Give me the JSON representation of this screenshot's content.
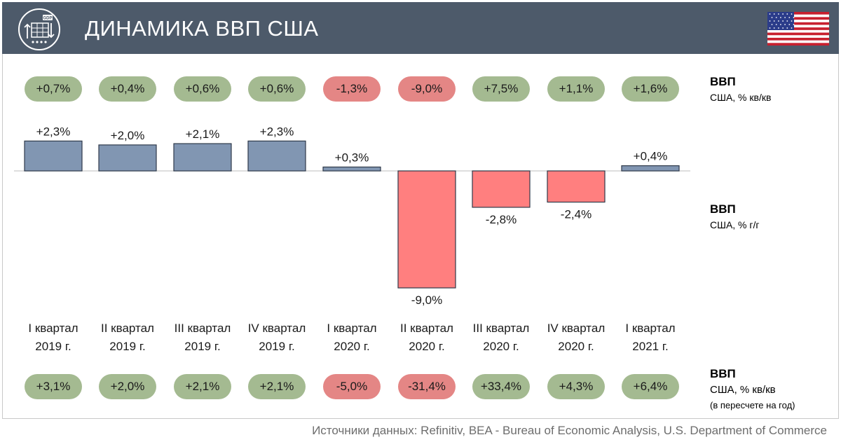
{
  "header": {
    "title": "ДИНАМИКА ВВП США",
    "logo_icon": "gdp-growth-icon",
    "logo_text": "GDP",
    "flag_icon": "usa-flag-icon",
    "bg_color": "#4d5a6a"
  },
  "top_row": {
    "title": "ВВП",
    "subtitle": "США, % кв/кв",
    "values": [
      {
        "label": "+0,7%",
        "tone": "positive"
      },
      {
        "label": "+0,4%",
        "tone": "positive"
      },
      {
        "label": "+0,6%",
        "tone": "positive"
      },
      {
        "label": "+0,6%",
        "tone": "positive"
      },
      {
        "label": "-1,3%",
        "tone": "negative"
      },
      {
        "label": "-9,0%",
        "tone": "negative"
      },
      {
        "label": "+7,5%",
        "tone": "positive"
      },
      {
        "label": "+1,1%",
        "tone": "positive"
      },
      {
        "label": "+1,6%",
        "tone": "positive"
      }
    ]
  },
  "middle_row": {
    "title": "ВВП",
    "subtitle": "США, % г/г"
  },
  "bottom_row": {
    "title": "ВВП",
    "subtitle": "США, % кв/кв",
    "note": "(в пересчете на год)",
    "values": [
      {
        "label": "+3,1%",
        "tone": "positive"
      },
      {
        "label": "+2,0%",
        "tone": "positive"
      },
      {
        "label": "+2,1%",
        "tone": "positive"
      },
      {
        "label": "+2,1%",
        "tone": "positive"
      },
      {
        "label": "-5,0%",
        "tone": "negative"
      },
      {
        "label": "-31,4%",
        "tone": "negative"
      },
      {
        "label": "+33,4%",
        "tone": "positive"
      },
      {
        "label": "+4,3%",
        "tone": "positive"
      },
      {
        "label": "+6,4%",
        "tone": "positive"
      }
    ]
  },
  "quarters": [
    {
      "line1": "I квартал",
      "line2": "2019 г."
    },
    {
      "line1": "II квартал",
      "line2": "2019 г."
    },
    {
      "line1": "III квартал",
      "line2": "2019 г."
    },
    {
      "line1": "IV квартал",
      "line2": "2019 г."
    },
    {
      "line1": "I квартал",
      "line2": "2020 г."
    },
    {
      "line1": "II квартал",
      "line2": "2020 г."
    },
    {
      "line1": "III квартал",
      "line2": "2020 г."
    },
    {
      "line1": "IV квартал",
      "line2": "2020 г."
    },
    {
      "line1": "I квартал",
      "line2": "2021 г."
    }
  ],
  "colors": {
    "positive_bar": "#8196b2",
    "negative_bar": "#ff7f7f",
    "bar_stroke": "#2f3a4a",
    "positive_pill": "#a4ba91",
    "negative_pill": "#e48685"
  },
  "chart_data": {
    "type": "bar",
    "title": "ДИНАМИКА ВВП США",
    "series": [
      {
        "name": "ВВП США, % г/г",
        "values": [
          2.3,
          2.0,
          2.1,
          2.3,
          0.3,
          -9.0,
          -2.8,
          -2.4,
          0.4
        ]
      }
    ],
    "categories": [
      "I квартал 2019 г.",
      "II квартал 2019 г.",
      "III квартал 2019 г.",
      "IV квартал 2019 г.",
      "I квартал 2020 г.",
      "II квартал 2020 г.",
      "III квартал 2020 г.",
      "IV квартал 2020 г.",
      "I квартал 2021 г."
    ],
    "value_labels": [
      "+2,3%",
      "+2,0%",
      "+2,1%",
      "+2,3%",
      "+0,3%",
      "-9,0%",
      "-2,8%",
      "-2,4%",
      "+0,4%"
    ],
    "ylabel": "ВВП США, % г/г",
    "ylim": [
      -9.0,
      2.3
    ],
    "grid": false
  },
  "footer": {
    "source": "Источники данных: Refinitiv, BEA - Bureau of Economic Analysis, U.S. Department of Commerce"
  }
}
